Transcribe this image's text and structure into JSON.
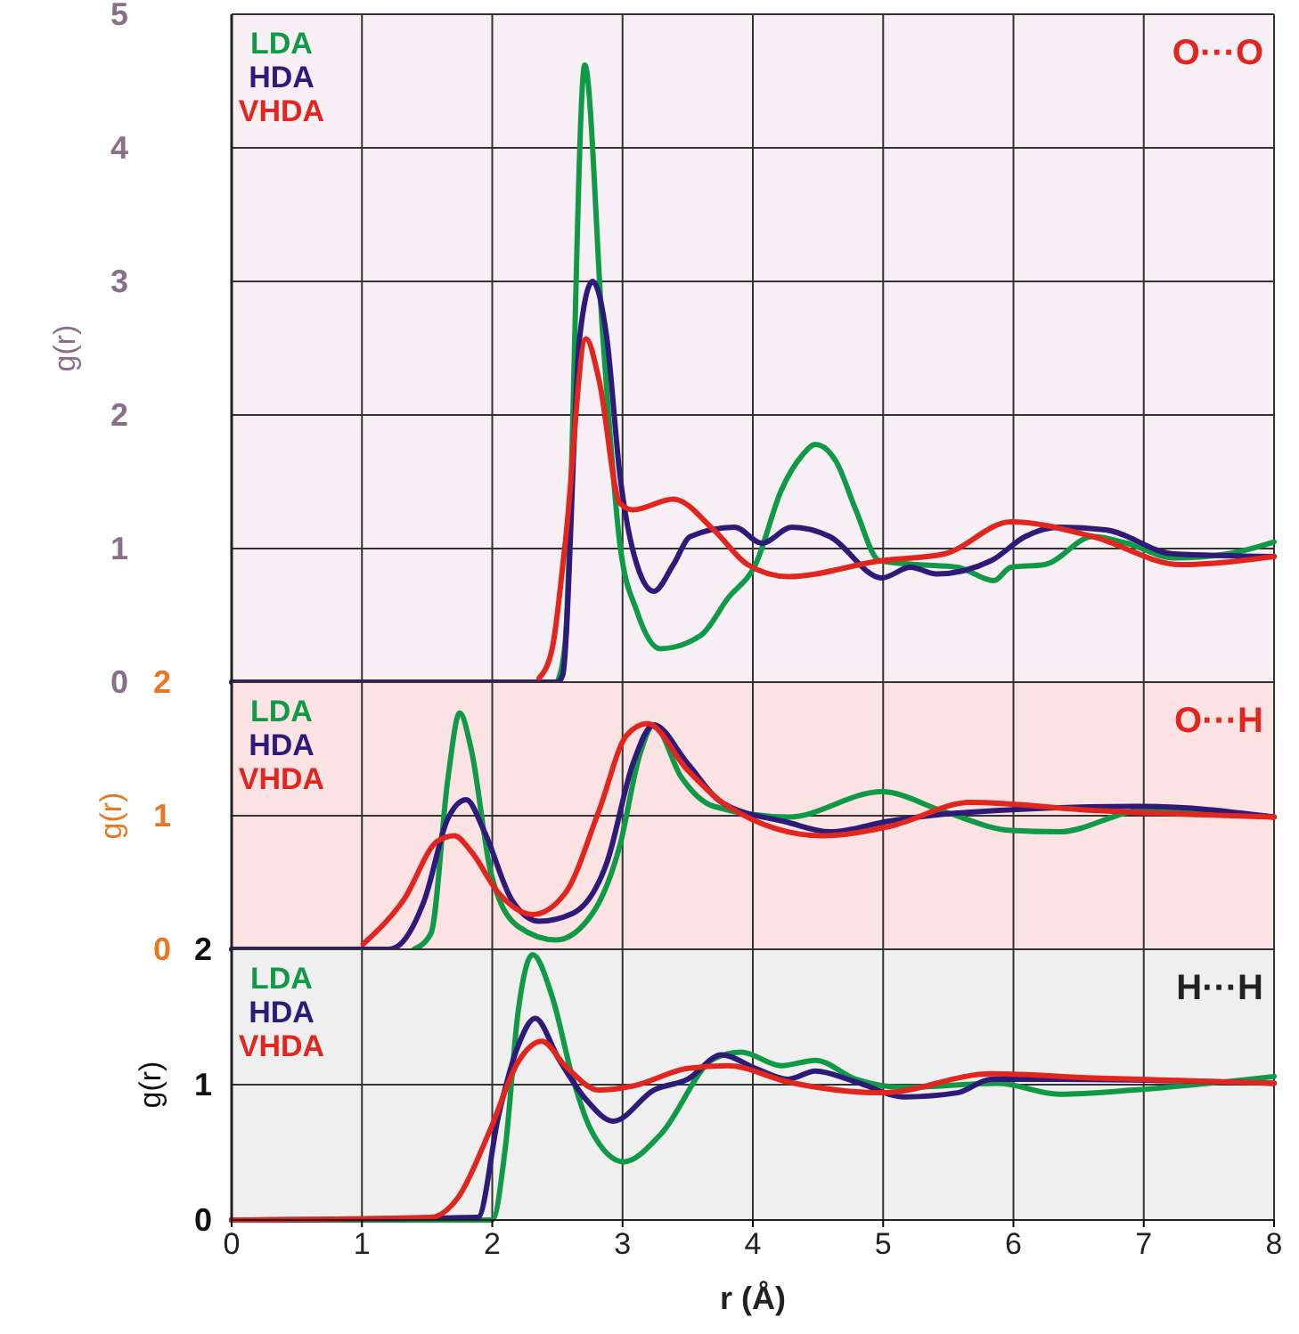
{
  "chart_data": [
    {
      "type": "line",
      "ylabel": "g(r)",
      "annotations": [
        "O···O"
      ],
      "xlim": [
        0,
        8
      ],
      "xticks": [
        0,
        1,
        2,
        3,
        4,
        5,
        6,
        7,
        8
      ],
      "ylim": [
        0,
        5
      ],
      "yticks": [
        0,
        1,
        2,
        3,
        4,
        5
      ],
      "grid": true,
      "legend": "top left",
      "tick_labels": "y",
      "series": [
        {
          "name": "LDA",
          "color": "#109a48",
          "x": [
            2.5,
            2.56,
            2.71,
            2.85,
            2.98,
            3.11,
            3.29,
            3.6,
            3.81,
            4.02,
            4.22,
            4.38,
            4.48,
            4.64,
            4.79,
            4.97,
            5.26,
            5.57,
            5.85,
            5.98,
            6.24,
            6.61,
            6.87,
            7.23,
            7.64,
            8
          ],
          "values": [
            0,
            0.3,
            4.62,
            2.57,
            1.03,
            0.53,
            0.25,
            0.35,
            0.63,
            0.88,
            1.44,
            1.7,
            1.78,
            1.65,
            1.29,
            0.91,
            0.88,
            0.86,
            0.76,
            0.86,
            0.88,
            1.09,
            1.04,
            0.93,
            0.96,
            1.05
          ]
        },
        {
          "name": "HDA",
          "color": "#2e1a78",
          "x": [
            0,
            2.5,
            2.54,
            2.67,
            2.77,
            2.88,
            2.98,
            3.11,
            3.24,
            3.39,
            3.52,
            3.86,
            4.07,
            4.3,
            4.59,
            4.99,
            5.21,
            5.41,
            5.83,
            6.09,
            6.35,
            6.71,
            7.23,
            8
          ],
          "values": [
            0,
            0,
            0.05,
            2.57,
            3.0,
            2.57,
            1.55,
            0.88,
            0.68,
            0.88,
            1.09,
            1.16,
            1.04,
            1.16,
            1.09,
            0.78,
            0.86,
            0.81,
            0.91,
            1.09,
            1.16,
            1.14,
            0.96,
            0.94
          ]
        },
        {
          "name": "VHDA",
          "color": "#e0261f",
          "x": [
            2.36,
            2.46,
            2.56,
            2.72,
            2.82,
            2.98,
            3.08,
            3.39,
            3.7,
            3.96,
            4.27,
            4.99,
            5.47,
            5.98,
            6.61,
            7.28,
            8
          ],
          "values": [
            0.03,
            0.25,
            1.04,
            2.57,
            2.26,
            1.34,
            1.29,
            1.37,
            1.14,
            0.88,
            0.79,
            0.91,
            0.96,
            1.2,
            1.09,
            0.88,
            0.94
          ]
        }
      ]
    },
    {
      "type": "line",
      "ylabel": "g(r)",
      "annotations": [
        "O···H"
      ],
      "xlim": [
        0,
        8
      ],
      "xticks": [
        0,
        1,
        2,
        3,
        4,
        5,
        6,
        7,
        8
      ],
      "ylim": [
        0,
        2
      ],
      "yticks": [
        0,
        1,
        2
      ],
      "grid": true,
      "legend": "top left",
      "tick_labels": "y",
      "series": [
        {
          "name": "LDA",
          "color": "#109a48",
          "x": [
            1.4,
            1.53,
            1.66,
            1.75,
            1.84,
            1.99,
            2.2,
            2.49,
            2.77,
            2.98,
            3.13,
            3.24,
            3.45,
            3.7,
            4.27,
            4.99,
            5.47,
            5.98,
            6.35,
            7.0,
            8
          ],
          "values": [
            0,
            0.12,
            1.28,
            1.77,
            1.49,
            0.57,
            0.17,
            0.07,
            0.27,
            0.78,
            1.45,
            1.68,
            1.29,
            1.07,
            0.99,
            1.18,
            1.03,
            0.89,
            0.88,
            1.04,
            0.99
          ]
        },
        {
          "name": "HDA",
          "color": "#2e1a78",
          "x": [
            0,
            1.2,
            1.27,
            1.48,
            1.66,
            1.8,
            1.94,
            2.15,
            2.36,
            2.62,
            2.88,
            3.08,
            3.24,
            3.5,
            3.76,
            4.27,
            4.59,
            5.05,
            5.57,
            7.0,
            8
          ],
          "values": [
            0,
            0,
            0.02,
            0.37,
            0.98,
            1.12,
            0.88,
            0.37,
            0.21,
            0.27,
            0.65,
            1.39,
            1.68,
            1.39,
            1.1,
            0.95,
            0.88,
            0.96,
            1.02,
            1.07,
            0.99
          ]
        },
        {
          "name": "VHDA",
          "color": "#e0261f",
          "x": [
            1.01,
            1.32,
            1.58,
            1.71,
            1.84,
            2.05,
            2.31,
            2.56,
            2.82,
            3.03,
            3.19,
            3.5,
            3.81,
            4.53,
            5.05,
            5.67,
            6.61,
            8
          ],
          "values": [
            0.04,
            0.37,
            0.81,
            0.85,
            0.73,
            0.42,
            0.26,
            0.42,
            1.04,
            1.6,
            1.69,
            1.34,
            1.07,
            0.85,
            0.92,
            1.1,
            1.04,
            0.99
          ]
        }
      ]
    },
    {
      "type": "line",
      "ylabel": "g(r)",
      "xlabel": "r (Å)",
      "annotations": [
        "H···H"
      ],
      "xlim": [
        0,
        8
      ],
      "xticks": [
        0,
        1,
        2,
        3,
        4,
        5,
        6,
        7,
        8
      ],
      "ylim": [
        0,
        2
      ],
      "yticks": [
        0,
        1,
        2
      ],
      "grid": true,
      "legend": "top left",
      "series": [
        {
          "name": "LDA",
          "color": "#109a48",
          "x": [
            0,
            2.0,
            2.1,
            2.2,
            2.31,
            2.46,
            2.62,
            2.75,
            3.01,
            3.29,
            3.7,
            3.91,
            4.22,
            4.48,
            4.79,
            5.16,
            5.88,
            6.35,
            6.92,
            8
          ],
          "values": [
            0,
            0,
            0.53,
            1.55,
            1.96,
            1.65,
            1.04,
            0.68,
            0.43,
            0.63,
            1.19,
            1.24,
            1.14,
            1.18,
            1.04,
            0.98,
            1.01,
            0.93,
            0.96,
            1.06
          ]
        },
        {
          "name": "HDA",
          "color": "#2e1a78",
          "x": [
            0,
            1.89,
            2.05,
            2.2,
            2.33,
            2.51,
            2.72,
            2.93,
            3.24,
            3.5,
            3.76,
            4.02,
            4.27,
            4.48,
            4.79,
            5.16,
            5.57,
            5.83,
            6.35,
            8
          ],
          "values": [
            0,
            0.02,
            0.78,
            1.29,
            1.49,
            1.19,
            0.89,
            0.73,
            0.96,
            1.04,
            1.22,
            1.12,
            1.04,
            1.1,
            1.02,
            0.91,
            0.94,
            1.04,
            1.04,
            1.01
          ]
        },
        {
          "name": "VHDA",
          "color": "#e0261f",
          "x": [
            0,
            1.53,
            1.74,
            1.99,
            2.2,
            2.38,
            2.56,
            2.82,
            3.08,
            3.5,
            3.81,
            4.27,
            4.99,
            5.83,
            6.61,
            8
          ],
          "values": [
            0,
            0.02,
            0.17,
            0.68,
            1.17,
            1.32,
            1.14,
            0.96,
            0.99,
            1.12,
            1.14,
            1.02,
            0.94,
            1.08,
            1.05,
            1.01
          ]
        }
      ]
    }
  ]
}
